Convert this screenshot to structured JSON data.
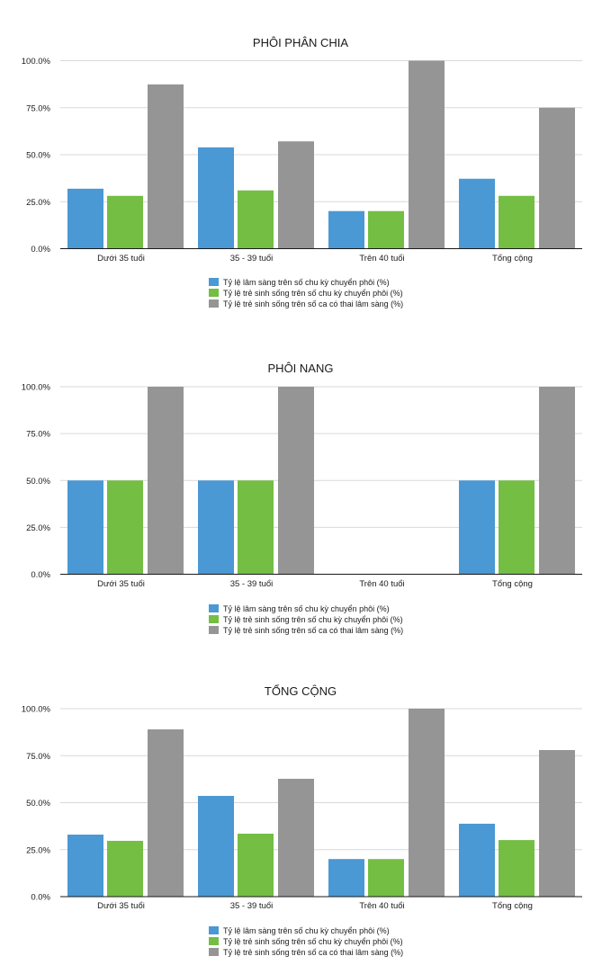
{
  "colors": {
    "series1": "#4a98d4",
    "series2": "#74be43",
    "series3": "#959595",
    "grid": "#d9d9d9",
    "axis": "#1a1a1a"
  },
  "chart_data": [
    {
      "type": "bar",
      "title": "PHÔI PHÂN CHIA",
      "xlabel": "",
      "ylabel": "",
      "ylim": [
        0,
        100
      ],
      "yticks": [
        "0.0%",
        "25.0%",
        "50.0%",
        "75.0%",
        "100.0%"
      ],
      "grid": true,
      "legend_position": "bottom",
      "categories": [
        "Dưới 35 tuổi",
        "35 - 39 tuổi",
        "Trên 40 tuổi",
        "Tổng cộng"
      ],
      "series": [
        {
          "name": "Tỷ lệ lâm sàng trên số chu kỳ chuyển phôi (%)",
          "values": [
            31.9,
            53.9,
            20.0,
            37.2
          ]
        },
        {
          "name": "Tỷ lệ trẻ sinh sống trên số chu kỳ chuyển phôi (%)",
          "values": [
            28.1,
            31.0,
            20.0,
            28.1
          ]
        },
        {
          "name": "Tỷ lệ trẻ sinh sống trên số ca có thai lâm sàng (%)",
          "values": [
            87.4,
            57.1,
            100.0,
            75.0
          ]
        }
      ]
    },
    {
      "type": "bar",
      "title": "PHÔI NANG",
      "xlabel": "",
      "ylabel": "",
      "ylim": [
        0,
        100
      ],
      "yticks": [
        "0.0%",
        "25.0%",
        "50.0%",
        "75.0%",
        "100.0%"
      ],
      "grid": true,
      "legend_position": "bottom",
      "categories": [
        "Dưới 35 tuổi",
        "35 - 39 tuổi",
        "Trên 40 tuổi",
        "Tổng cộng"
      ],
      "series": [
        {
          "name": "Tỷ lệ lâm sàng trên số chu kỳ chuyển phôi (%)",
          "values": [
            50.0,
            50.0,
            0,
            50.0
          ]
        },
        {
          "name": "Tỷ lệ trẻ sinh sống trên số chu kỳ chuyển phôi (%)",
          "values": [
            50.0,
            50.0,
            0,
            50.0
          ]
        },
        {
          "name": "Tỷ lệ trẻ sinh sống trên số ca có thai lâm sàng (%)",
          "values": [
            100.0,
            100.0,
            0,
            100.0
          ]
        }
      ]
    },
    {
      "type": "bar",
      "title": "TỔNG CỘNG",
      "xlabel": "",
      "ylabel": "",
      "ylim": [
        0,
        100
      ],
      "yticks": [
        "0.0%",
        "25.0%",
        "50.0%",
        "75.0%",
        "100.0%"
      ],
      "grid": true,
      "legend_position": "bottom",
      "categories": [
        "Dưới 35 tuổi",
        "35 - 39 tuổi",
        "Trên 40 tuổi",
        "Tổng cộng"
      ],
      "series": [
        {
          "name": "Tỷ lệ lâm sàng trên số chu kỳ chuyển phôi (%)",
          "values": [
            33.0,
            53.6,
            20.0,
            38.8
          ]
        },
        {
          "name": "Tỷ lệ trẻ sinh sống trên số chu kỳ chuyển phôi (%)",
          "values": [
            29.7,
            33.5,
            20.0,
            30.1
          ]
        },
        {
          "name": "Tỷ lệ trẻ sinh sống trên số ca có thai lâm sàng (%)",
          "values": [
            89.0,
            62.7,
            100.0,
            78.0
          ]
        }
      ]
    }
  ]
}
